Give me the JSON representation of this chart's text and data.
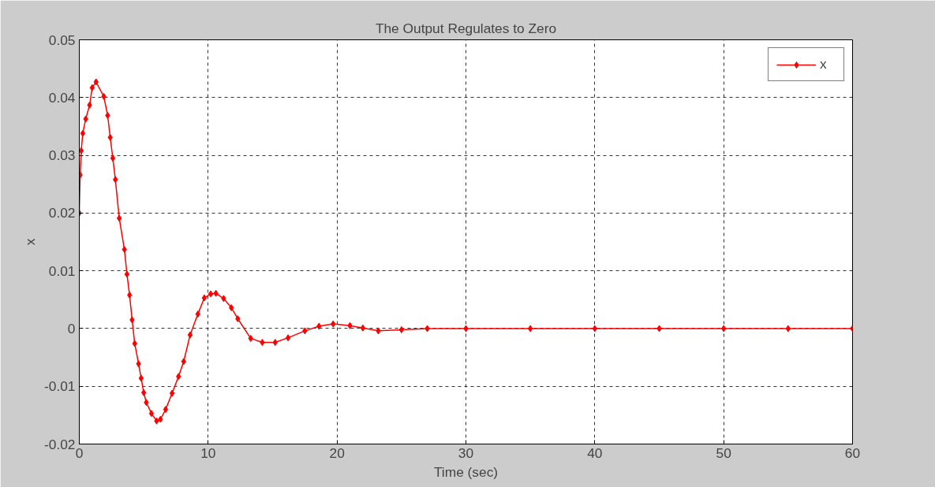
{
  "chart_data": {
    "type": "line",
    "title": "The Output Regulates to Zero",
    "xlabel": "Time (sec)",
    "ylabel": "x",
    "xlim": [
      0,
      60
    ],
    "ylim": [
      -0.02,
      0.05
    ],
    "xticks": [
      0,
      10,
      20,
      30,
      40,
      50,
      60
    ],
    "yticks": [
      -0.02,
      -0.01,
      0,
      0.01,
      0.02,
      0.03,
      0.04,
      0.05
    ],
    "grid": true,
    "legend": "top right",
    "marker": "diamond",
    "line_style": "solid",
    "series": [
      {
        "name": "x",
        "color": "#ff0000",
        "x": [
          0,
          0.07,
          0.15,
          0.27,
          0.5,
          0.8,
          1.0,
          1.3,
          1.9,
          2.2,
          2.4,
          2.6,
          2.8,
          3.1,
          3.5,
          3.7,
          3.9,
          4.1,
          4.3,
          4.6,
          4.8,
          5.0,
          5.2,
          5.6,
          6.0,
          6.3,
          6.7,
          7.2,
          7.7,
          8.1,
          8.6,
          9.2,
          9.7,
          10.2,
          10.6,
          11.2,
          11.8,
          12.3,
          13.3,
          14.2,
          15.2,
          16.2,
          17.5,
          18.6,
          19.7,
          21.0,
          22.0,
          23.2,
          25,
          27,
          30,
          35,
          40,
          45,
          50,
          55,
          60
        ],
        "values": [
          0.02,
          0.0266,
          0.0308,
          0.0338,
          0.0363,
          0.0387,
          0.0417,
          0.0427,
          0.0402,
          0.0369,
          0.0331,
          0.0295,
          0.0258,
          0.0191,
          0.0137,
          0.0094,
          0.0058,
          0.0015,
          -0.0026,
          -0.0061,
          -0.0086,
          -0.0111,
          -0.0128,
          -0.0147,
          -0.016,
          -0.0157,
          -0.014,
          -0.0112,
          -0.0083,
          -0.0057,
          -0.0011,
          0.0025,
          0.0053,
          0.006,
          0.0061,
          0.0052,
          0.0036,
          0.0017,
          -0.0017,
          -0.0024,
          -0.0024,
          -0.0016,
          -0.0004,
          0.0004,
          0.0008,
          0.0005,
          0.0001,
          -0.0004,
          -0.0002,
          0,
          0,
          0,
          0,
          0,
          0,
          0,
          0
        ]
      }
    ]
  }
}
